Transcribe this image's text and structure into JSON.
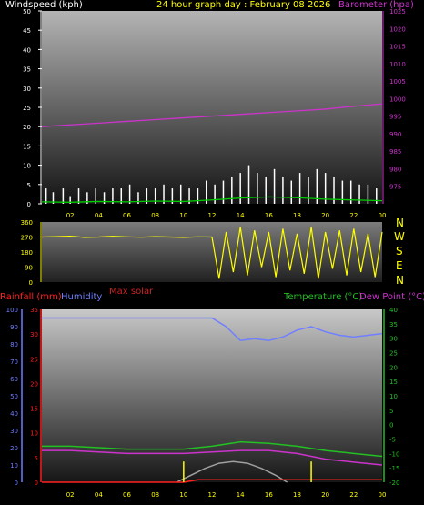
{
  "header": {
    "left_label": "Windspeed (kph)",
    "title": "24 hour graph day : February 08 2026",
    "right_label": "Barometer (hpa)"
  },
  "colors": {
    "background": "#000000",
    "wind": "#ffffff",
    "gust_green": "#00cc00",
    "barometer": "#cc33cc",
    "direction": "#ffff00",
    "humidity": "#6f7fff",
    "rainfall": "#ff2020",
    "temperature": "#22c022",
    "dewpoint": "#cc33cc",
    "solar": "#a0a0a0",
    "axis_label": "#ffffff",
    "time_label": "#ffff00"
  },
  "time_axis_labels": [
    "02",
    "04",
    "06",
    "08",
    "10",
    "12",
    "14",
    "16",
    "18",
    "20",
    "22",
    "00"
  ],
  "panels": {
    "direction": {
      "ticks": [
        "360",
        "270",
        "180",
        "90",
        "0"
      ],
      "compass": [
        "N",
        "W",
        "S",
        "E",
        "N"
      ]
    },
    "bottom": {
      "rain_label": "Rainfall (mm)",
      "humidity_label": "Humidity",
      "solar_label": "Max solar",
      "temp_label": "Temperature (°C)",
      "dew_label": "Dew Point (°C)"
    }
  },
  "chart_data": [
    {
      "type": "line",
      "id": "wind_baro",
      "xlim": [
        0,
        24
      ],
      "ylim": [
        0,
        50
      ],
      "y2lim": [
        970,
        1025
      ],
      "left_ticks": [
        0,
        5,
        10,
        15,
        20,
        25,
        30,
        35,
        40,
        45,
        50
      ],
      "right_ticks": [
        975,
        980,
        985,
        990,
        995,
        1000,
        1005,
        1010,
        1015,
        1020,
        1025
      ],
      "series": [
        {
          "name": "Windspeed (kph)",
          "axis": "left",
          "style": "bars",
          "x": [
            0.3,
            0.8,
            1.5,
            2,
            2.6,
            3.2,
            3.8,
            4.4,
            5,
            5.6,
            6.2,
            6.8,
            7.4,
            8,
            8.6,
            9.2,
            9.8,
            10.4,
            11,
            11.6,
            12.2,
            12.8,
            13.4,
            14,
            14.6,
            15.2,
            15.8,
            16.4,
            17,
            17.6,
            18.2,
            18.8,
            19.4,
            20,
            20.6,
            21.2,
            21.8,
            22.4,
            23,
            23.6
          ],
          "y": [
            4,
            3,
            4,
            2,
            4,
            3,
            4,
            3,
            4,
            4,
            5,
            3,
            4,
            4,
            5,
            4,
            5,
            4,
            4,
            6,
            5,
            6,
            7,
            8,
            10,
            8,
            7,
            9,
            7,
            6,
            8,
            7,
            9,
            8,
            7,
            6,
            6,
            5,
            5,
            4
          ]
        },
        {
          "name": "",
          "axis": "left",
          "style": "line",
          "x": [
            0,
            2,
            4,
            6,
            8,
            10,
            12,
            14,
            16,
            18,
            20,
            22,
            24
          ],
          "y": [
            0.5,
            0.4,
            0.6,
            0.5,
            0.7,
            0.6,
            1.0,
            1.5,
            1.8,
            1.6,
            1.2,
            1.0,
            0.8
          ]
        },
        {
          "name": "Barometer (hpa)",
          "axis": "right",
          "style": "line",
          "x": [
            0,
            2,
            4,
            6,
            8,
            10,
            12,
            14,
            16,
            18,
            20,
            22,
            24
          ],
          "y": [
            992,
            992.5,
            993,
            993.5,
            994,
            994.5,
            995,
            995.5,
            996,
            996.5,
            997,
            997.8,
            998.5
          ]
        }
      ]
    },
    {
      "type": "scatter",
      "id": "wind_direction",
      "xlim": [
        0,
        24
      ],
      "ylim": [
        0,
        360
      ],
      "series": [
        {
          "name": "",
          "x": [
            0,
            1,
            2,
            3,
            4,
            5,
            6,
            7,
            8,
            9,
            10,
            11,
            12,
            12.5,
            13,
            13.5,
            14,
            14.5,
            15,
            15.5,
            16,
            16.5,
            17,
            17.5,
            18,
            18.5,
            19,
            19.5,
            20,
            20.5,
            21,
            21.5,
            22,
            22.5,
            23,
            23.5,
            24
          ],
          "y": [
            270,
            272,
            275,
            268,
            270,
            274,
            271,
            269,
            272,
            270,
            268,
            271,
            270,
            20,
            300,
            60,
            330,
            40,
            310,
            90,
            300,
            30,
            320,
            70,
            290,
            50,
            330,
            20,
            300,
            80,
            310,
            40,
            320,
            60,
            290,
            30,
            300
          ]
        }
      ]
    },
    {
      "type": "line",
      "id": "temp_hum_rain",
      "xlim": [
        0,
        24
      ],
      "ylim": [
        0,
        100
      ],
      "rain_ylim": [
        0,
        35
      ],
      "temp_ylim": [
        -20,
        40
      ],
      "humidity_ticks": [
        0,
        10,
        20,
        30,
        40,
        50,
        60,
        70,
        80,
        90,
        100
      ],
      "rain_ticks": [
        0,
        5,
        10,
        15,
        20,
        25,
        30,
        35
      ],
      "temp_ticks": [
        -20,
        -15,
        -10,
        -5,
        0,
        5,
        10,
        15,
        20,
        25,
        30,
        35,
        40
      ],
      "series": [
        {
          "name": "Humidity",
          "axis": "humidity",
          "x": [
            0,
            2,
            4,
            6,
            8,
            10,
            12,
            13,
            14,
            15,
            16,
            17,
            18,
            19,
            20,
            21,
            22,
            23,
            24
          ],
          "y": [
            95,
            95,
            95,
            95,
            95,
            95,
            95,
            90,
            82,
            83,
            82,
            84,
            88,
            90,
            87,
            85,
            84,
            85,
            86
          ]
        },
        {
          "name": "Temperature (°C)",
          "axis": "temp",
          "x": [
            0,
            2,
            4,
            6,
            8,
            10,
            12,
            14,
            16,
            18,
            20,
            22,
            24
          ],
          "y": [
            -7.5,
            -7.5,
            -8,
            -8.5,
            -8.5,
            -8.5,
            -7.5,
            -6,
            -6.5,
            -7.5,
            -9,
            -10,
            -11
          ]
        },
        {
          "name": "Dew Point (°C)",
          "axis": "temp",
          "x": [
            0,
            2,
            4,
            6,
            8,
            10,
            12,
            14,
            16,
            18,
            20,
            22,
            24
          ],
          "y": [
            -9,
            -9,
            -9.5,
            -10,
            -10,
            -10,
            -9.5,
            -9,
            -9,
            -10,
            -12,
            -13,
            -14
          ]
        },
        {
          "name": "Max solar",
          "axis": "humidity",
          "x": [
            9.5,
            10.5,
            11.5,
            12.5,
            13.5,
            14.5,
            15.5,
            16.5,
            17.3
          ],
          "y": [
            0,
            4,
            8,
            11,
            12,
            11,
            8,
            4,
            0
          ]
        },
        {
          "name": "Rainfall (mm)",
          "axis": "rain",
          "x": [
            0,
            10,
            11,
            14,
            18,
            24
          ],
          "y": [
            0,
            0,
            0.5,
            0.5,
            0.5,
            0.5
          ]
        }
      ],
      "markers_x": [
        10,
        19
      ]
    }
  ]
}
